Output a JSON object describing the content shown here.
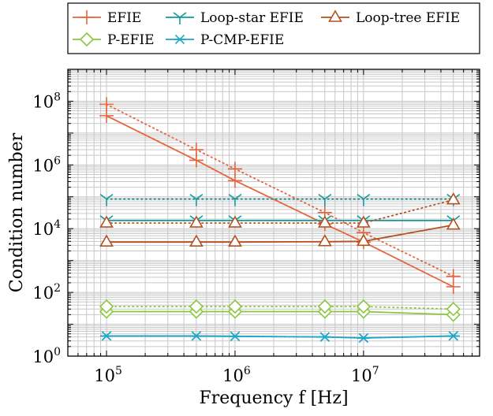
{
  "chart_data": {
    "type": "line",
    "xlabel": "Frequency f [Hz]",
    "ylabel": "Condition number",
    "x_scale": "log",
    "y_scale": "log",
    "xlim": [
      50000,
      80000000
    ],
    "ylim": [
      1,
      1000000000
    ],
    "grid": true,
    "legend_position": "top",
    "x_ticks": [
      {
        "base": "10",
        "exp": "5",
        "value": 100000
      },
      {
        "base": "10",
        "exp": "6",
        "value": 1000000
      },
      {
        "base": "10",
        "exp": "7",
        "value": 10000000
      }
    ],
    "y_ticks": [
      {
        "base": "10",
        "exp": "0",
        "value": 1
      },
      {
        "base": "10",
        "exp": "2",
        "value": 100
      },
      {
        "base": "10",
        "exp": "4",
        "value": 10000
      },
      {
        "base": "10",
        "exp": "6",
        "value": 1000000
      },
      {
        "base": "10",
        "exp": "8",
        "value": 100000000
      }
    ],
    "x": [
      100000,
      500000,
      1000000,
      5000000,
      10000000,
      50000000
    ],
    "series": [
      {
        "name": "EFIE",
        "color": "#e8643c",
        "marker": "plus",
        "style": "solid",
        "legend": true,
        "values": [
          35000000,
          1400000,
          320000,
          14000,
          3800,
          150
        ]
      },
      {
        "color": "#e8643c",
        "marker": "plus",
        "style": "dotted",
        "legend": false,
        "values": [
          80000000,
          3000000,
          750000,
          32000,
          7500,
          320
        ]
      },
      {
        "name": "Loop-star EFIE",
        "color": "#159a9c",
        "marker": "tri",
        "style": "solid",
        "legend": true,
        "values": [
          18000,
          18000,
          18000,
          18000,
          18000,
          18000
        ]
      },
      {
        "color": "#159a9c",
        "marker": "tri",
        "style": "dotted",
        "legend": false,
        "values": [
          85000,
          85000,
          85000,
          85000,
          85000,
          85000
        ]
      },
      {
        "name": "Loop-tree EFIE",
        "color": "#b5501e",
        "marker": "triangle",
        "style": "solid",
        "legend": true,
        "values": [
          3800,
          3800,
          3800,
          3900,
          4000,
          13000
        ]
      },
      {
        "color": "#b5501e",
        "marker": "triangle",
        "style": "dotted",
        "legend": false,
        "values": [
          15000,
          15000,
          15000,
          15000,
          15000,
          80000
        ]
      },
      {
        "name": "P-EFIE",
        "color": "#8cc63f",
        "marker": "diamond",
        "style": "solid",
        "legend": true,
        "values": [
          25,
          25,
          25,
          25,
          25,
          20
        ]
      },
      {
        "color": "#8cc63f",
        "marker": "diamond",
        "style": "dotted",
        "legend": false,
        "values": [
          36,
          36,
          36,
          36,
          36,
          30
        ]
      },
      {
        "name": "P-CMP-EFIE",
        "color": "#1aa7c9",
        "marker": "asterisk",
        "style": "solid",
        "legend": true,
        "values": [
          4.3,
          4.3,
          4.2,
          4.0,
          3.7,
          4.3
        ]
      },
      {
        "color": "#1aa7c9",
        "marker": "asterisk",
        "style": "dotted",
        "legend": false,
        "values": [
          4.3,
          4.3,
          4.2,
          4.0,
          3.7,
          4.3
        ]
      }
    ]
  }
}
